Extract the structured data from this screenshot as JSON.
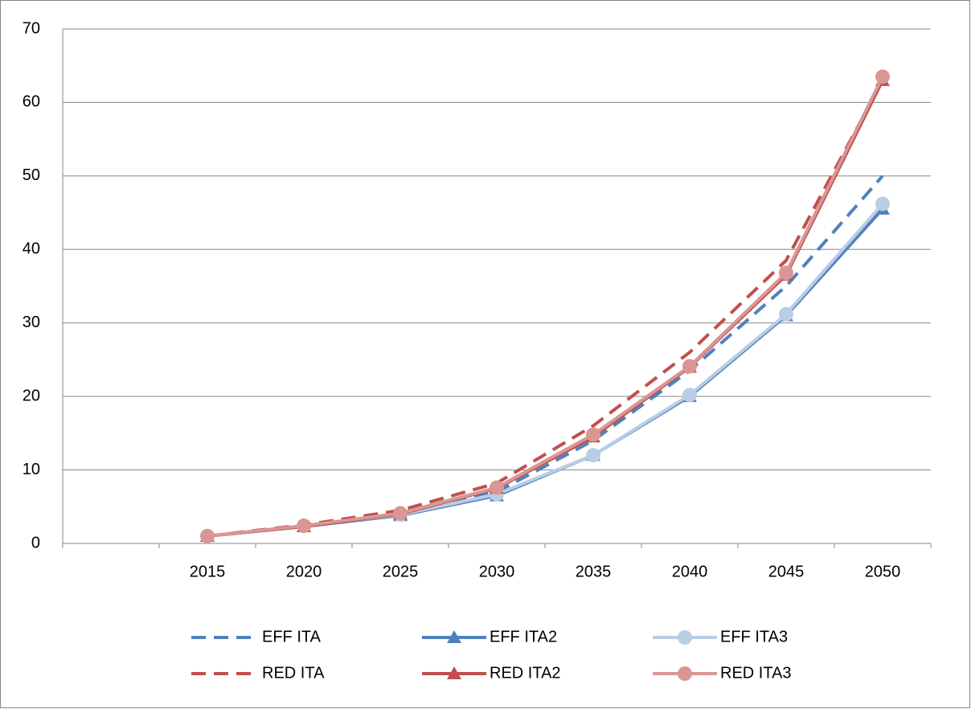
{
  "chart_data": {
    "type": "line",
    "categories": [
      null,
      "2015",
      "2020",
      "2025",
      "2030",
      "2035",
      "2040",
      "2045",
      "2050"
    ],
    "series": [
      {
        "name": "EFF ITA",
        "color": "#4f81bd",
        "dashed": true,
        "marker": null,
        "values": [
          null,
          1,
          2.5,
          4,
          7,
          14,
          23.5,
          35,
          50
        ]
      },
      {
        "name": "EFF ITA2",
        "color": "#4f81bd",
        "dashed": false,
        "marker": "triangle",
        "values": [
          null,
          1,
          2.3,
          3.8,
          6.5,
          12,
          20,
          31,
          45.5
        ]
      },
      {
        "name": "EFF ITA3",
        "color": "#b9cde5",
        "dashed": false,
        "marker": "circle",
        "values": [
          null,
          1,
          2.4,
          3.9,
          6.7,
          12,
          20.2,
          31.2,
          46.2
        ]
      },
      {
        "name": "RED ITA",
        "color": "#c0504d",
        "dashed": true,
        "marker": null,
        "values": [
          null,
          1,
          2.5,
          4.5,
          8.2,
          16,
          26,
          38.5,
          63
        ]
      },
      {
        "name": "RED ITA2",
        "color": "#c0504d",
        "dashed": false,
        "marker": "triangle",
        "values": [
          null,
          1,
          2.3,
          4,
          7.5,
          14.5,
          24,
          36.5,
          63
        ]
      },
      {
        "name": "RED ITA3",
        "color": "#d99694",
        "dashed": false,
        "marker": "circle",
        "values": [
          null,
          1,
          2.4,
          4.1,
          7.6,
          14.8,
          24.1,
          36.8,
          63.5
        ]
      }
    ],
    "ylim": [
      0,
      70
    ],
    "yticks": [
      0,
      10,
      20,
      30,
      40,
      50,
      60,
      70
    ],
    "grid": true,
    "legend": "bottom"
  }
}
